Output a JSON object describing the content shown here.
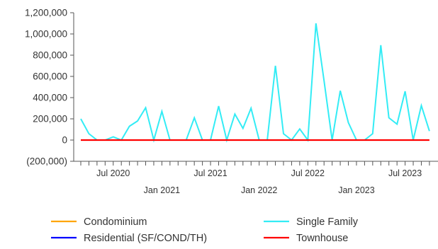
{
  "chart_data": {
    "type": "line",
    "title": "",
    "xlabel": "",
    "ylabel": "",
    "ylim": [
      -200000,
      1200000
    ],
    "y_ticks": [
      {
        "value": 1200000,
        "label": "1,200,000"
      },
      {
        "value": 1000000,
        "label": "1,000,000"
      },
      {
        "value": 800000,
        "label": "800,000"
      },
      {
        "value": 600000,
        "label": "600,000"
      },
      {
        "value": 400000,
        "label": "400,000"
      },
      {
        "value": 200000,
        "label": "200,000"
      },
      {
        "value": 0,
        "label": "0"
      },
      {
        "value": -200000,
        "label": "(200,000)"
      }
    ],
    "x": [
      "2020-03",
      "2020-04",
      "2020-05",
      "2020-06",
      "2020-07",
      "2020-08",
      "2020-09",
      "2020-10",
      "2020-11",
      "2020-12",
      "2021-01",
      "2021-02",
      "2021-03",
      "2021-04",
      "2021-05",
      "2021-06",
      "2021-07",
      "2021-08",
      "2021-09",
      "2021-10",
      "2021-11",
      "2021-12",
      "2022-01",
      "2022-02",
      "2022-03",
      "2022-04",
      "2022-05",
      "2022-06",
      "2022-07",
      "2022-08",
      "2022-09",
      "2022-10",
      "2022-11",
      "2022-12",
      "2023-01",
      "2023-02",
      "2023-03",
      "2023-04",
      "2023-05",
      "2023-06",
      "2023-07",
      "2023-08",
      "2023-09",
      "2023-10"
    ],
    "x_ticks": [
      {
        "x": "2020-07",
        "label": "Jul 2020",
        "row": 1
      },
      {
        "x": "2021-01",
        "label": "Jan 2021",
        "row": 2
      },
      {
        "x": "2021-07",
        "label": "Jul 2021",
        "row": 1
      },
      {
        "x": "2022-01",
        "label": "Jan 2022",
        "row": 2
      },
      {
        "x": "2022-07",
        "label": "Jul 2022",
        "row": 1
      },
      {
        "x": "2023-01",
        "label": "Jan 2023",
        "row": 2
      },
      {
        "x": "2023-07",
        "label": "Jul 2023",
        "row": 1
      }
    ],
    "series": [
      {
        "name": "Single Family",
        "color": "#33ecf5",
        "values": [
          200000,
          60000,
          0,
          0,
          30000,
          0,
          130000,
          180000,
          305000,
          0,
          270000,
          0,
          0,
          0,
          210000,
          0,
          0,
          320000,
          0,
          245000,
          110000,
          300000,
          0,
          0,
          700000,
          60000,
          0,
          105000,
          0,
          1100000,
          560000,
          0,
          465000,
          165000,
          0,
          0,
          60000,
          895000,
          210000,
          150000,
          460000,
          0,
          325000,
          85000
        ]
      },
      {
        "name": "Townhouse",
        "color": "#ff0000",
        "values": [
          0,
          0,
          0,
          0,
          0,
          0,
          0,
          0,
          0,
          0,
          0,
          0,
          0,
          0,
          0,
          0,
          0,
          0,
          0,
          0,
          0,
          0,
          0,
          0,
          0,
          0,
          0,
          0,
          0,
          0,
          0,
          0,
          0,
          0,
          0,
          0,
          0,
          0,
          0,
          0,
          0,
          0,
          0,
          0
        ]
      }
    ],
    "legend": {
      "placement": "bottom",
      "entries": [
        {
          "name": "Condominium",
          "color": "#ffa500"
        },
        {
          "name": "Single Family",
          "color": "#33ecf5"
        },
        {
          "name": "Residential (SF/COND/TH)",
          "color": "#0000ff"
        },
        {
          "name": "Townhouse",
          "color": "#ff0000"
        }
      ]
    },
    "grid": false
  }
}
